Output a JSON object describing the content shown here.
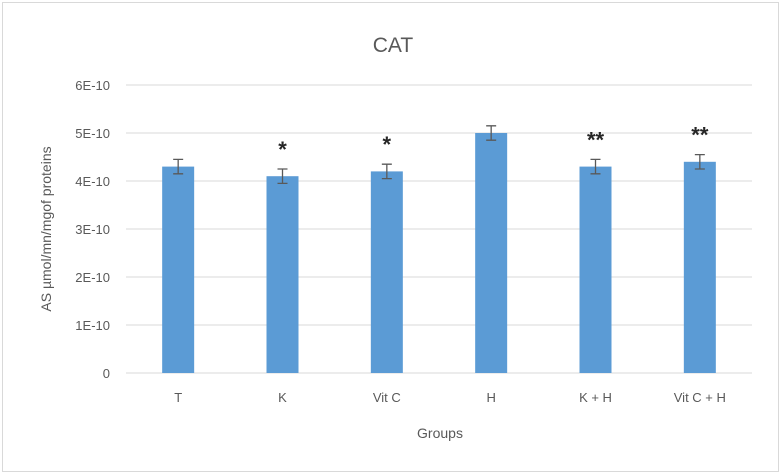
{
  "chart_data": {
    "type": "bar",
    "title": "CAT",
    "xlabel": "Groups",
    "ylabel": "AS µmol/mn/mgof  proteins",
    "categories": [
      "T",
      "K",
      "Vit C",
      "H",
      "K + H",
      "Vit C + H"
    ],
    "values": [
      4.3e-10,
      4.1e-10,
      4.2e-10,
      5e-10,
      4.3e-10,
      4.4e-10
    ],
    "error": [
      1.5e-11,
      1.5e-11,
      1.5e-11,
      1.5e-11,
      1.5e-11,
      1.5e-11
    ],
    "significance": [
      "",
      "*",
      "*",
      "",
      "**",
      "**"
    ],
    "ylim": [
      0,
      6e-10
    ],
    "yticks": [
      0,
      1e-10,
      2e-10,
      3e-10,
      4e-10,
      5e-10,
      6e-10
    ],
    "ytick_labels": [
      "0",
      "1E-10",
      "2E-10",
      "3E-10",
      "4E-10",
      "5E-10",
      "6E-10"
    ],
    "grid": true,
    "legend": "none",
    "bar_color": "#5b9bd5"
  }
}
